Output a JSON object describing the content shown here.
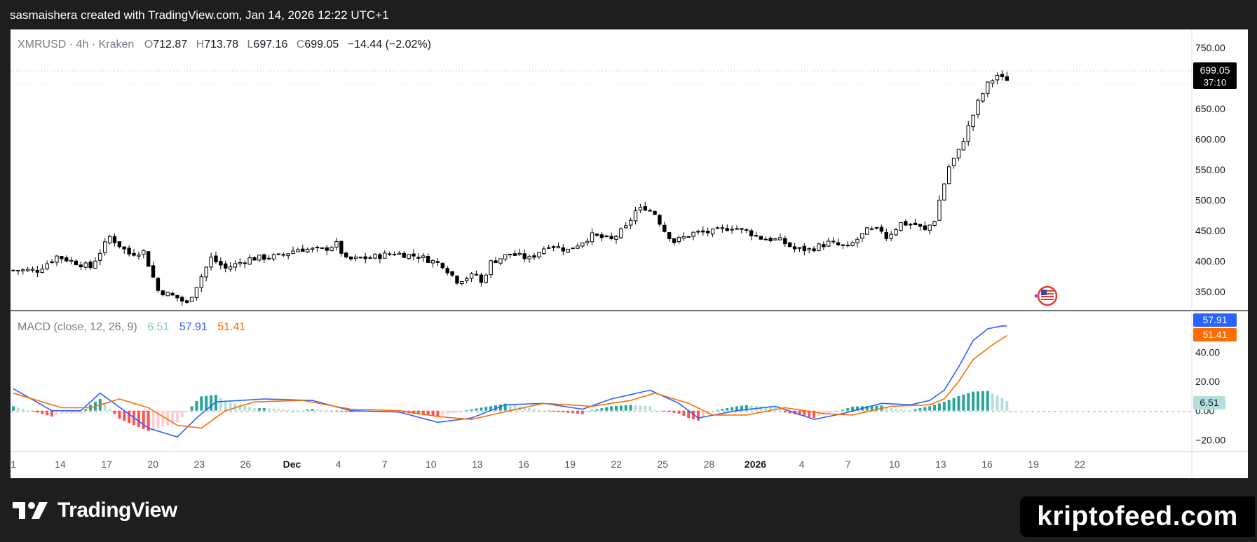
{
  "header": {
    "caption": "sasmaishera created with TradingView.com, Jan 14, 2026 12:22 UTC+1"
  },
  "footer": {
    "brand": "TradingView",
    "watermark": "kriptofeed.com"
  },
  "colors": {
    "candle": "#000000",
    "macd_line": "#2962ff",
    "signal_line": "#ff6d00",
    "hist_pos_strong": "#26a69a",
    "hist_pos_weak": "#b2dfdb",
    "hist_neg_strong": "#ff5252",
    "hist_neg_weak": "#ffcdd2",
    "price_label_bg": "#000000",
    "hist_label_bg": "#b2dfdb"
  },
  "icons": {
    "brand_logo": "tradingview-logo-icon",
    "event_marker": "us-flag-event-icon"
  },
  "chart_data": {
    "type": "candlestick",
    "title": "",
    "symbol": "XMRUSD",
    "interval": "4h",
    "exchange": "Kraken",
    "legend": {
      "symbol_text": "XMRUSD · 4h · Kraken",
      "o_label": "O",
      "o_value": "712.87",
      "h_label": "H",
      "h_value": "713.78",
      "l_label": "L",
      "l_value": "697.16",
      "c_label": "C",
      "c_value": "699.05",
      "change": "−14.44 (−2.02%)"
    },
    "last_price": {
      "value": "699.05",
      "countdown": "37:10"
    },
    "price_axis": {
      "ticks": [
        "750.00",
        "650.00",
        "600.00",
        "550.00",
        "500.00",
        "450.00",
        "400.00",
        "350.00"
      ],
      "range": [
        320,
        780
      ]
    },
    "x_axis": {
      "ticks": [
        "1",
        "14",
        "17",
        "20",
        "23",
        "26",
        "Dec",
        "4",
        "7",
        "10",
        "13",
        "16",
        "19",
        "22",
        "25",
        "28",
        "2026",
        "4",
        "7",
        "10",
        "13",
        "16",
        "19",
        "22"
      ],
      "bold": [
        "Dec",
        "2026"
      ]
    },
    "price_path": [
      [
        0,
        385
      ],
      [
        6,
        385
      ],
      [
        10,
        408
      ],
      [
        17,
        390
      ],
      [
        21,
        440
      ],
      [
        25,
        412
      ],
      [
        28,
        416
      ],
      [
        31,
        352
      ],
      [
        35,
        340
      ],
      [
        37,
        330
      ],
      [
        42,
        405
      ],
      [
        45,
        388
      ],
      [
        50,
        404
      ],
      [
        56,
        408
      ],
      [
        60,
        420
      ],
      [
        65,
        418
      ],
      [
        68,
        428
      ],
      [
        70,
        402
      ],
      [
        75,
        406
      ],
      [
        80,
        413
      ],
      [
        85,
        408
      ],
      [
        90,
        394
      ],
      [
        93,
        368
      ],
      [
        97,
        378
      ],
      [
        98,
        364
      ],
      [
        100,
        398
      ],
      [
        104,
        412
      ],
      [
        108,
        404
      ],
      [
        112,
        427
      ],
      [
        116,
        418
      ],
      [
        121,
        442
      ],
      [
        125,
        435
      ],
      [
        128,
        455
      ],
      [
        130,
        482
      ],
      [
        132,
        488
      ],
      [
        134,
        478
      ],
      [
        136,
        450
      ],
      [
        138,
        432
      ],
      [
        142,
        446
      ],
      [
        146,
        448
      ],
      [
        150,
        456
      ],
      [
        153,
        449
      ],
      [
        156,
        438
      ],
      [
        160,
        434
      ],
      [
        163,
        420
      ],
      [
        166,
        419
      ],
      [
        170,
        430
      ],
      [
        174,
        422
      ],
      [
        178,
        450
      ],
      [
        181,
        451
      ],
      [
        182,
        439
      ],
      [
        185,
        462
      ],
      [
        188,
        460
      ],
      [
        190,
        450
      ],
      [
        192,
        468
      ],
      [
        193,
        500
      ],
      [
        195,
        555
      ],
      [
        197,
        580
      ],
      [
        199,
        620
      ],
      [
        201,
        660
      ],
      [
        203,
        690
      ],
      [
        205,
        705
      ],
      [
        206,
        699
      ]
    ],
    "num_candles": 207,
    "macd": {
      "label": "MACD (close, 12, 26, 9)",
      "histogram": "6.51",
      "macd": "57.91",
      "signal": "51.41",
      "axis_ticks": [
        "40.00",
        "20.00",
        "0.00",
        "−20.00"
      ],
      "range": [
        -28,
        68
      ],
      "macd_path": [
        [
          0,
          15
        ],
        [
          8,
          0
        ],
        [
          14,
          0
        ],
        [
          18,
          12
        ],
        [
          23,
          0
        ],
        [
          28,
          -12
        ],
        [
          34,
          -18
        ],
        [
          38,
          -5
        ],
        [
          42,
          6
        ],
        [
          52,
          8
        ],
        [
          62,
          7
        ],
        [
          70,
          0
        ],
        [
          80,
          -1
        ],
        [
          88,
          -8
        ],
        [
          95,
          -5
        ],
        [
          102,
          4
        ],
        [
          110,
          5
        ],
        [
          118,
          1
        ],
        [
          124,
          8
        ],
        [
          132,
          14
        ],
        [
          138,
          5
        ],
        [
          142,
          -5
        ],
        [
          150,
          0
        ],
        [
          158,
          3
        ],
        [
          166,
          -6
        ],
        [
          172,
          -2
        ],
        [
          180,
          5
        ],
        [
          186,
          4
        ],
        [
          190,
          7
        ],
        [
          193,
          14
        ],
        [
          196,
          30
        ],
        [
          199,
          48
        ],
        [
          202,
          56
        ],
        [
          205,
          58
        ],
        [
          206,
          57.9
        ]
      ],
      "signal_path": [
        [
          0,
          12
        ],
        [
          10,
          2
        ],
        [
          16,
          2
        ],
        [
          22,
          8
        ],
        [
          28,
          2
        ],
        [
          34,
          -10
        ],
        [
          39,
          -12
        ],
        [
          44,
          0
        ],
        [
          50,
          6
        ],
        [
          60,
          7
        ],
        [
          70,
          1
        ],
        [
          80,
          0
        ],
        [
          88,
          -4
        ],
        [
          95,
          -6
        ],
        [
          103,
          0
        ],
        [
          110,
          5
        ],
        [
          120,
          3
        ],
        [
          128,
          7
        ],
        [
          133,
          12
        ],
        [
          140,
          5
        ],
        [
          145,
          -3
        ],
        [
          152,
          -3
        ],
        [
          160,
          2
        ],
        [
          168,
          -2
        ],
        [
          174,
          -3
        ],
        [
          182,
          3
        ],
        [
          190,
          4
        ],
        [
          193,
          8
        ],
        [
          196,
          20
        ],
        [
          199,
          35
        ],
        [
          203,
          45
        ],
        [
          206,
          51.4
        ]
      ]
    }
  }
}
